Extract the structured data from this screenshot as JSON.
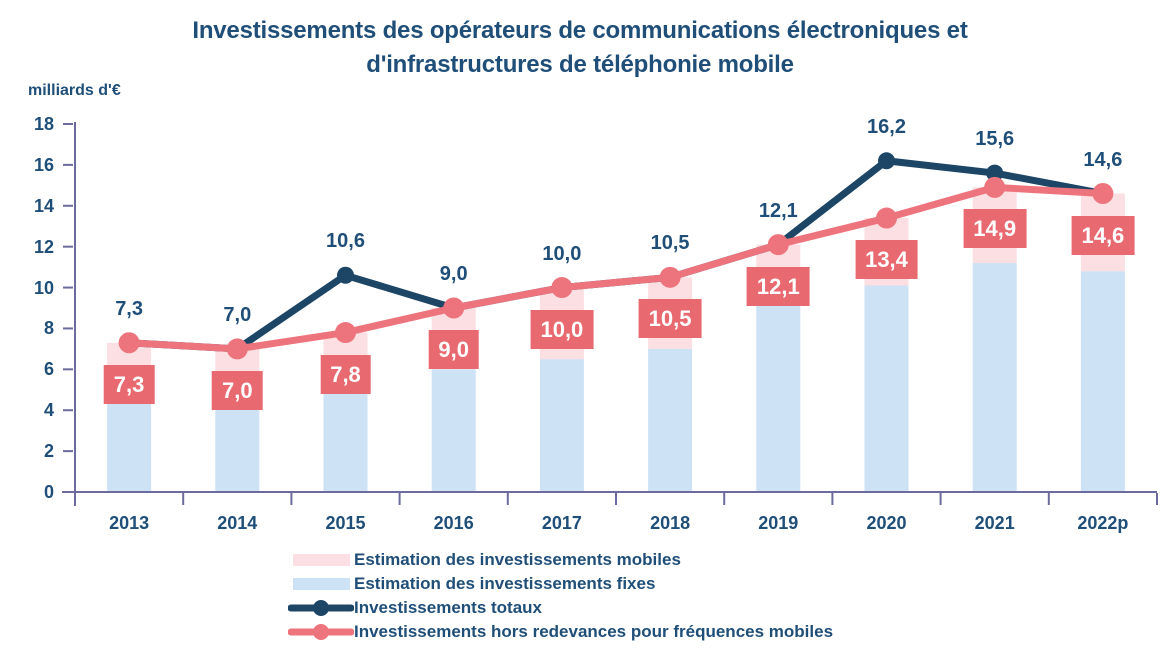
{
  "title": {
    "line1": "Investissements des opérateurs de communications électroniques et",
    "line2": "d'infrastructures de téléphonie mobile"
  },
  "colors": {
    "title_text": "#1F4E79",
    "axis_line": "#6B6B9E",
    "navy_line": "#1C4566",
    "salmon_line": "#ED747C",
    "bar_fixed_fill": "#CEE2F5",
    "bar_mobile_fill": "#FBDFE2",
    "value_badge_bg": "#E8696F",
    "value_badge_text": "#FFFFFF"
  },
  "chart_data": {
    "type": "combo-stacked-bar-line",
    "title": "Investissements des opérateurs de communications électroniques et d'infrastructures de téléphonie mobile",
    "ylabel": "milliards d'€",
    "ylim": [
      0,
      18
    ],
    "yticks": [
      0,
      2,
      4,
      6,
      8,
      10,
      12,
      14,
      16,
      18
    ],
    "grid": false,
    "legend_position": "bottom",
    "categories": [
      "2013",
      "2014",
      "2015",
      "2016",
      "2017",
      "2018",
      "2019",
      "2020",
      "2021",
      "2022p"
    ],
    "bar_series": [
      {
        "name": "Estimation des investissements fixes",
        "stack_position": "bottom",
        "color": "#CEE2F5",
        "values": [
          4.5,
          4.3,
          5.1,
          6.0,
          6.5,
          7.0,
          9.2,
          10.1,
          11.2,
          10.8
        ]
      },
      {
        "name": "Estimation des investissements mobiles",
        "stack_position": "top",
        "color": "#FBDFE2",
        "values": [
          2.8,
          2.7,
          2.7,
          3.0,
          3.5,
          3.5,
          2.9,
          3.3,
          3.7,
          3.8
        ]
      }
    ],
    "line_series": [
      {
        "name": "Investissements totaux",
        "color": "#1C4566",
        "values": [
          7.3,
          7.0,
          10.6,
          9.0,
          10.0,
          10.5,
          12.1,
          16.2,
          15.6,
          14.6
        ],
        "labels": [
          "7,3",
          "7,0",
          "10,6",
          "9,0",
          "10,0",
          "10,5",
          "12,1",
          "16,2",
          "15,6",
          "14,6"
        ],
        "label_style": "text-above"
      },
      {
        "name": "Investissements hors redevances pour fréquences mobiles",
        "color": "#ED747C",
        "values": [
          7.3,
          7.0,
          7.8,
          9.0,
          10.0,
          10.5,
          12.1,
          13.4,
          14.9,
          14.6
        ],
        "labels": [
          "7,3",
          "7,0",
          "7,8",
          "9,0",
          "10,0",
          "10,5",
          "12,1",
          "13,4",
          "14,9",
          "14,6"
        ],
        "label_style": "badge-on-bar"
      }
    ]
  },
  "legend": {
    "items": [
      {
        "label": "Estimation des investissements mobiles",
        "swatch_type": "rect",
        "color": "#FBDFE2"
      },
      {
        "label": "Estimation des investissements fixes",
        "swatch_type": "rect",
        "color": "#CEE2F5"
      },
      {
        "label": "Investissements totaux",
        "swatch_type": "line-dot",
        "color": "#1C4566"
      },
      {
        "label": "Investissements hors redevances pour fréquences mobiles",
        "swatch_type": "line-dot",
        "color": "#ED747C"
      }
    ]
  }
}
